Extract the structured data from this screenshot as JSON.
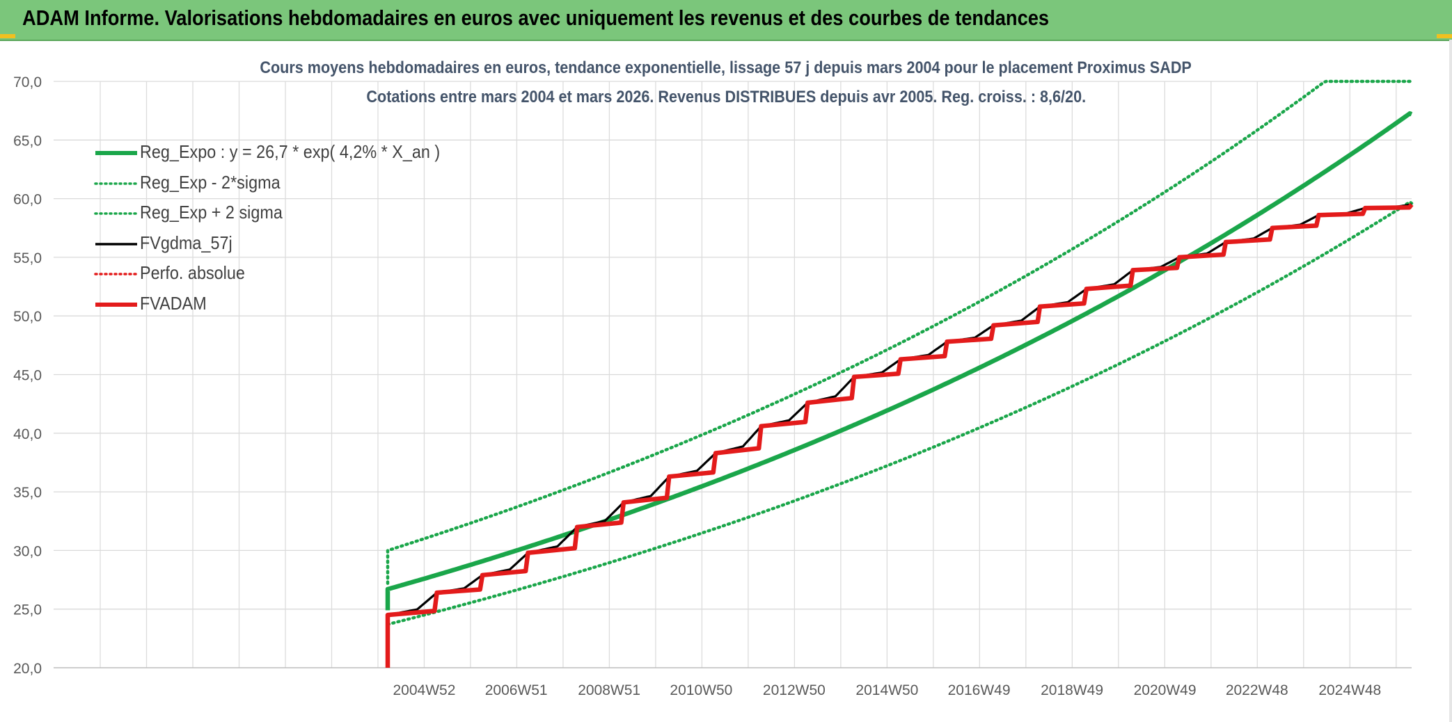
{
  "banner": {
    "title": "ADAM Informe. Valorisations hebdomadaires en euros avec uniquement les revenus et des courbes de tendances"
  },
  "chart_data": {
    "type": "line",
    "title_line1": "Cours moyens hebdomadaires en euros, tendance exponentielle, lissage 57 j depuis mars 2004 pour le placement Proximus SADP",
    "title_line2": "Cotations entre mars 2004 et mars 2026. Revenus DISTRIBUES depuis avr 2005. Reg. croiss. : 8,6/20.",
    "xlabel": "",
    "ylabel": "",
    "x_tick_labels": [
      "2004W52",
      "2006W51",
      "2008W51",
      "2010W50",
      "2012W50",
      "2014W50",
      "2016W49",
      "2018W49",
      "2020W49",
      "2022W48",
      "2024W48"
    ],
    "x_range": [
      "1997W01",
      "2026W13"
    ],
    "ylim": [
      20,
      70
    ],
    "y_tick_labels": [
      "20,0",
      "25,0",
      "30,0",
      "35,0",
      "40,0",
      "45,0",
      "50,0",
      "55,0",
      "60,0",
      "65,0",
      "70,0"
    ],
    "grid": true,
    "legend_position": "top-left",
    "series": [
      {
        "name": "Reg_Expo : y = 26,7 * exp( 4,2% *  X_an )",
        "color": "#1aa64a",
        "style": "solid-thick",
        "x": [
          "2004W11",
          "2026W13"
        ],
        "y": [
          26.7,
          67.2
        ],
        "model": "exponential",
        "start_value": 26.7,
        "rate_per_year": 0.042
      },
      {
        "name": "Reg_Exp - 2*sigma",
        "color": "#1aa64a",
        "style": "dotted",
        "x": [
          "2004W11",
          "2026W13"
        ],
        "y": [
          23.7,
          59.6
        ],
        "model": "exponential",
        "start_value": 23.7,
        "rate_per_year": 0.042
      },
      {
        "name": "Reg_Exp + 2 sigma",
        "color": "#1aa64a",
        "style": "dotted",
        "x": [
          "2004W11",
          "2021W44",
          "2026W13"
        ],
        "y": [
          30.0,
          70.0,
          70.0
        ],
        "model": "exponential",
        "start_value": 30.0,
        "rate_per_year": 0.042,
        "cap": 70.0
      },
      {
        "name": "FVgdma_57j",
        "color": "#000000",
        "style": "solid-thin",
        "smoothed": true,
        "x": [
          "2004W11",
          "2005W14",
          "2006W13",
          "2007W12",
          "2008W15",
          "2009W15",
          "2010W14",
          "2011W14",
          "2012W13",
          "2013W13",
          "2014W13",
          "2015W13",
          "2016W13",
          "2017W13",
          "2018W13",
          "2019W13",
          "2020W13",
          "2021W13",
          "2022W13",
          "2023W13",
          "2024W13",
          "2025W13",
          "2026W13"
        ],
        "y": [
          24.5,
          26.4,
          27.9,
          29.8,
          32.0,
          34.1,
          36.3,
          38.3,
          40.6,
          42.6,
          44.8,
          46.3,
          47.8,
          49.2,
          50.8,
          52.3,
          53.9,
          55.0,
          56.3,
          57.5,
          58.6,
          59.2,
          59.5
        ]
      },
      {
        "name": "Perfo. absolue",
        "color": "#e31b1b",
        "style": "dotted",
        "x": [],
        "y": []
      },
      {
        "name": "FVADAM",
        "color": "#e31b1b",
        "style": "solid-thick",
        "stepped": true,
        "start_from": 20.0,
        "x": [
          "2004W11",
          "2005W14",
          "2006W13",
          "2007W12",
          "2008W15",
          "2009W15",
          "2010W14",
          "2011W14",
          "2012W13",
          "2013W13",
          "2014W13",
          "2015W13",
          "2016W13",
          "2017W13",
          "2018W13",
          "2019W13",
          "2020W13",
          "2021W13",
          "2022W13",
          "2023W13",
          "2024W13",
          "2025W13",
          "2026W13"
        ],
        "y": [
          24.5,
          26.4,
          27.9,
          29.8,
          32.0,
          34.1,
          36.3,
          38.3,
          40.6,
          42.6,
          44.8,
          46.3,
          47.8,
          49.2,
          50.8,
          52.3,
          53.9,
          55.0,
          56.3,
          57.5,
          58.6,
          59.2,
          59.5
        ]
      }
    ]
  }
}
